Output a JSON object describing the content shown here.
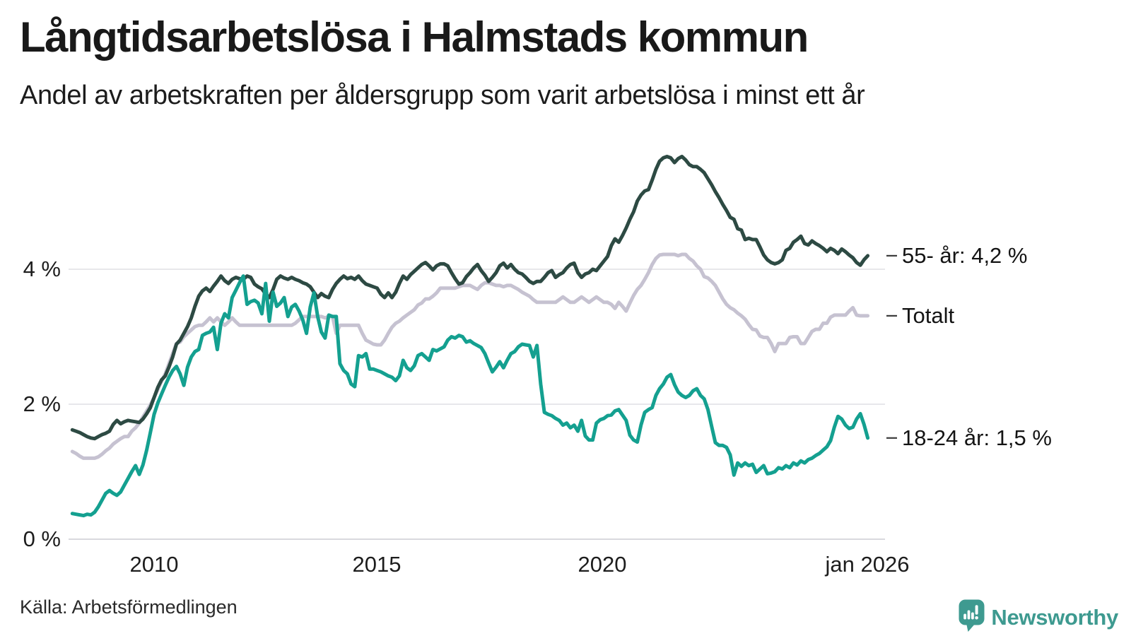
{
  "header": {
    "title": "Långtidsarbetslösa i Halmstads kommun",
    "subtitle": "Andel av arbetskraften per åldersgrupp som varit arbetslösa i minst ett år"
  },
  "chart_data": {
    "type": "line",
    "title": "Långtidsarbetslösa i Halmstads kommun",
    "subtitle": "Andel av arbetskraften per åldersgrupp som varit arbetslösa i minst ett år",
    "xlabel": "",
    "ylabel": "",
    "unit": "% av arbetskraften",
    "freq": "monthly",
    "start": "2008-03",
    "end": "2026-01",
    "xlim_years": [
      2008.0,
      2026.4
    ],
    "ylim": [
      0,
      6
    ],
    "yticks": [
      0,
      2,
      4
    ],
    "ytick_labels": [
      "0 %",
      "2 %",
      "4 %"
    ],
    "x_tick_labels": [
      "2010",
      "2015",
      "2020",
      "jan 2026"
    ],
    "x_tick_years": [
      2010,
      2015,
      2020,
      2026
    ],
    "grid": "horizontal",
    "legend_position": "end-of-line annotations (right)",
    "series": [
      {
        "name": "55- år",
        "end_label": "55- år: 4,2 %",
        "final_value": 4.2,
        "color": "#2d4a43",
        "z": 1,
        "values": [
          1.62,
          1.6,
          1.58,
          1.55,
          1.52,
          1.5,
          1.49,
          1.52,
          1.55,
          1.57,
          1.6,
          1.7,
          1.76,
          1.71,
          1.74,
          1.76,
          1.75,
          1.74,
          1.73,
          1.78,
          1.86,
          1.95,
          2.1,
          2.25,
          2.36,
          2.42,
          2.55,
          2.7,
          2.89,
          2.95,
          3.05,
          3.15,
          3.28,
          3.45,
          3.6,
          3.68,
          3.72,
          3.67,
          3.75,
          3.82,
          3.9,
          3.83,
          3.79,
          3.85,
          3.88,
          3.86,
          3.85,
          3.9,
          3.88,
          3.78,
          3.74,
          3.71,
          3.63,
          3.58,
          3.7,
          3.85,
          3.9,
          3.87,
          3.85,
          3.88,
          3.85,
          3.83,
          3.8,
          3.78,
          3.74,
          3.66,
          3.58,
          3.64,
          3.6,
          3.58,
          3.7,
          3.79,
          3.85,
          3.9,
          3.86,
          3.88,
          3.85,
          3.9,
          3.83,
          3.78,
          3.76,
          3.74,
          3.72,
          3.63,
          3.58,
          3.65,
          3.58,
          3.66,
          3.79,
          3.9,
          3.85,
          3.92,
          3.97,
          4.02,
          4.07,
          4.1,
          4.05,
          3.99,
          4.05,
          4.08,
          4.08,
          4.05,
          3.95,
          3.86,
          3.78,
          3.8,
          3.89,
          3.95,
          4.02,
          4.07,
          3.98,
          3.91,
          3.82,
          3.88,
          3.95,
          4.05,
          4.09,
          4.02,
          4.07,
          4.0,
          3.95,
          3.93,
          3.88,
          3.82,
          3.79,
          3.82,
          3.82,
          3.88,
          3.95,
          3.98,
          3.88,
          3.92,
          3.95,
          4.02,
          4.07,
          4.09,
          3.95,
          3.88,
          3.93,
          3.95,
          4.0,
          3.98,
          4.05,
          4.12,
          4.19,
          4.35,
          4.45,
          4.4,
          4.5,
          4.61,
          4.74,
          4.85,
          5.01,
          5.1,
          5.16,
          5.18,
          5.32,
          5.48,
          5.6,
          5.65,
          5.67,
          5.65,
          5.58,
          5.64,
          5.67,
          5.62,
          5.55,
          5.52,
          5.52,
          5.48,
          5.43,
          5.34,
          5.25,
          5.15,
          5.06,
          4.96,
          4.87,
          4.77,
          4.74,
          4.6,
          4.58,
          4.44,
          4.46,
          4.44,
          4.44,
          4.33,
          4.21,
          4.14,
          4.1,
          4.08,
          4.1,
          4.14,
          4.28,
          4.31,
          4.4,
          4.44,
          4.49,
          4.38,
          4.36,
          4.42,
          4.38,
          4.35,
          4.31,
          4.26,
          4.31,
          4.28,
          4.23,
          4.3,
          4.26,
          4.21,
          4.17,
          4.1,
          4.06,
          4.14,
          4.2
        ]
      },
      {
        "name": "Totalt",
        "end_label": "Totalt",
        "final_value": 3.3,
        "color": "#c6c2d1",
        "z": 0,
        "values": [
          1.3,
          1.27,
          1.23,
          1.2,
          1.2,
          1.2,
          1.2,
          1.22,
          1.26,
          1.31,
          1.35,
          1.41,
          1.45,
          1.49,
          1.52,
          1.52,
          1.6,
          1.65,
          1.72,
          1.81,
          1.9,
          1.99,
          2.1,
          2.22,
          2.34,
          2.45,
          2.6,
          2.75,
          2.9,
          2.92,
          3.0,
          3.05,
          3.1,
          3.15,
          3.17,
          3.17,
          3.22,
          3.28,
          3.22,
          3.28,
          3.22,
          3.17,
          3.22,
          3.28,
          3.22,
          3.17,
          3.17,
          3.17,
          3.17,
          3.17,
          3.17,
          3.17,
          3.17,
          3.17,
          3.17,
          3.17,
          3.17,
          3.17,
          3.17,
          3.17,
          3.2,
          3.25,
          3.3,
          3.3,
          3.3,
          3.3,
          3.3,
          3.3,
          3.28,
          3.3,
          3.3,
          3.05,
          3.17,
          3.17,
          3.17,
          3.17,
          3.17,
          3.17,
          3.05,
          2.95,
          2.92,
          2.89,
          2.88,
          2.88,
          2.95,
          3.05,
          3.14,
          3.2,
          3.23,
          3.28,
          3.32,
          3.36,
          3.4,
          3.47,
          3.5,
          3.56,
          3.56,
          3.6,
          3.65,
          3.72,
          3.72,
          3.72,
          3.72,
          3.72,
          3.74,
          3.76,
          3.76,
          3.76,
          3.73,
          3.7,
          3.76,
          3.8,
          3.8,
          3.78,
          3.76,
          3.76,
          3.74,
          3.76,
          3.76,
          3.73,
          3.7,
          3.66,
          3.63,
          3.6,
          3.55,
          3.51,
          3.51,
          3.51,
          3.51,
          3.51,
          3.51,
          3.55,
          3.59,
          3.55,
          3.51,
          3.51,
          3.55,
          3.59,
          3.55,
          3.51,
          3.55,
          3.59,
          3.55,
          3.51,
          3.51,
          3.48,
          3.42,
          3.51,
          3.45,
          3.38,
          3.5,
          3.61,
          3.7,
          3.76,
          3.85,
          3.95,
          4.07,
          4.16,
          4.21,
          4.22,
          4.22,
          4.22,
          4.22,
          4.2,
          4.22,
          4.22,
          4.16,
          4.12,
          4.05,
          4.0,
          3.89,
          3.87,
          3.82,
          3.76,
          3.66,
          3.56,
          3.48,
          3.43,
          3.4,
          3.35,
          3.31,
          3.26,
          3.18,
          3.11,
          3.1,
          3.01,
          2.99,
          2.99,
          2.9,
          2.78,
          2.9,
          2.9,
          2.9,
          2.99,
          3.0,
          3.0,
          2.9,
          2.9,
          2.99,
          3.08,
          3.11,
          3.11,
          3.2,
          3.2,
          3.29,
          3.32,
          3.32,
          3.32,
          3.32,
          3.38,
          3.43,
          3.32,
          3.31,
          3.31,
          3.31
        ]
      },
      {
        "name": "18-24 år",
        "end_label": "18-24 år: 1,5 %",
        "final_value": 1.5,
        "color": "#14a090",
        "z": 2,
        "values": [
          0.38,
          0.37,
          0.36,
          0.35,
          0.37,
          0.36,
          0.4,
          0.48,
          0.58,
          0.68,
          0.72,
          0.68,
          0.65,
          0.7,
          0.8,
          0.9,
          1.0,
          1.09,
          0.96,
          1.1,
          1.32,
          1.58,
          1.85,
          2.02,
          2.15,
          2.28,
          2.4,
          2.5,
          2.56,
          2.45,
          2.28,
          2.55,
          2.7,
          2.78,
          2.81,
          3.02,
          3.05,
          3.07,
          3.14,
          2.81,
          3.2,
          3.34,
          3.28,
          3.58,
          3.69,
          3.8,
          3.9,
          3.48,
          3.52,
          3.54,
          3.5,
          3.34,
          3.79,
          3.23,
          3.66,
          3.45,
          3.5,
          3.58,
          3.3,
          3.44,
          3.48,
          3.38,
          3.25,
          3.05,
          3.44,
          3.65,
          3.3,
          3.07,
          2.98,
          3.32,
          3.3,
          3.3,
          2.6,
          2.5,
          2.45,
          2.3,
          2.26,
          2.72,
          2.7,
          2.75,
          2.52,
          2.52,
          2.5,
          2.48,
          2.45,
          2.42,
          2.4,
          2.35,
          2.42,
          2.65,
          2.54,
          2.5,
          2.57,
          2.72,
          2.75,
          2.7,
          2.65,
          2.81,
          2.79,
          2.82,
          2.85,
          2.95,
          3.0,
          2.98,
          3.02,
          3.0,
          2.92,
          2.94,
          2.9,
          2.87,
          2.84,
          2.75,
          2.61,
          2.48,
          2.55,
          2.63,
          2.54,
          2.65,
          2.75,
          2.78,
          2.85,
          2.89,
          2.88,
          2.87,
          2.7,
          2.87,
          2.3,
          1.88,
          1.85,
          1.83,
          1.79,
          1.76,
          1.69,
          1.72,
          1.65,
          1.69,
          1.6,
          1.76,
          1.53,
          1.47,
          1.47,
          1.72,
          1.77,
          1.79,
          1.83,
          1.84,
          1.9,
          1.92,
          1.84,
          1.76,
          1.54,
          1.47,
          1.44,
          1.69,
          1.88,
          1.92,
          1.95,
          2.13,
          2.23,
          2.3,
          2.4,
          2.44,
          2.29,
          2.18,
          2.13,
          2.1,
          2.13,
          2.2,
          2.23,
          2.13,
          2.08,
          1.92,
          1.67,
          1.43,
          1.39,
          1.39,
          1.36,
          1.25,
          0.95,
          1.13,
          1.08,
          1.13,
          1.09,
          1.11,
          0.99,
          1.04,
          1.09,
          0.97,
          0.98,
          1.0,
          1.06,
          1.04,
          1.09,
          1.06,
          1.13,
          1.1,
          1.16,
          1.13,
          1.18,
          1.2,
          1.24,
          1.27,
          1.32,
          1.37,
          1.46,
          1.66,
          1.82,
          1.78,
          1.69,
          1.64,
          1.66,
          1.78,
          1.86,
          1.7,
          1.5
        ]
      }
    ]
  },
  "footer": {
    "source": "Källa: Arbetsförmedlingen",
    "brand": "Newsworthy"
  },
  "colors": {
    "series_55": "#2d4a43",
    "series_total": "#c6c2d1",
    "series_18_24": "#14a090",
    "gridline": "#e7e7eb",
    "baseline": "#d9d9de",
    "brand_teal": "#3e9a90",
    "text": "#191919",
    "background": "#ffffff"
  }
}
